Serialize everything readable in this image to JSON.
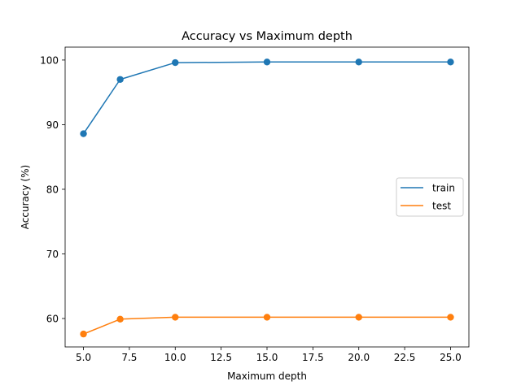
{
  "chart_data": {
    "type": "line",
    "title": "Accuracy vs Maximum depth",
    "xlabel": "Maximum depth",
    "ylabel": "Accuracy (%)",
    "x": [
      5,
      7,
      10,
      15,
      20,
      25
    ],
    "xlim": [
      4.0,
      26.0
    ],
    "ylim": [
      55.6,
      102.0
    ],
    "xticks": [
      5.0,
      7.5,
      10.0,
      12.5,
      15.0,
      17.5,
      20.0,
      22.5,
      25.0
    ],
    "xtick_labels": [
      "5.0",
      "7.5",
      "10.0",
      "12.5",
      "15.0",
      "17.5",
      "20.0",
      "22.5",
      "25.0"
    ],
    "yticks": [
      60,
      70,
      80,
      90,
      100
    ],
    "ytick_labels": [
      "60",
      "70",
      "80",
      "90",
      "100"
    ],
    "grid": false,
    "legend_position": "center-right",
    "series": [
      {
        "name": "train",
        "color": "#1f77b4",
        "values": [
          88.6,
          97.0,
          99.6,
          99.7,
          99.7,
          99.7
        ]
      },
      {
        "name": "test",
        "color": "#ff7f0e",
        "values": [
          57.6,
          59.9,
          60.2,
          60.2,
          60.2,
          60.2
        ]
      }
    ]
  }
}
